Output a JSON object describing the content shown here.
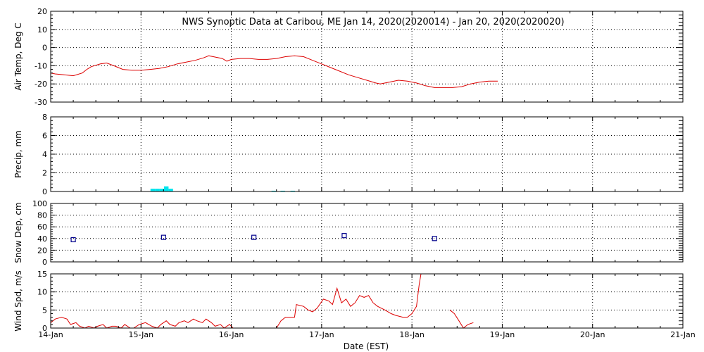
{
  "title": "NWS Synoptic Data at Caribou, ME   Jan 14, 2020(2020014) - Jan 20, 2020(2020020)",
  "colors": {
    "line": "#dd0000",
    "precip": "#00e5ee",
    "snow": "#00008b",
    "grid": "#000000"
  },
  "chart_data": [
    {
      "type": "line",
      "name": "air-temp",
      "ylabel": "Air Temp, Deg C",
      "ylim": [
        -30,
        20
      ],
      "yticks": [
        -30,
        -20,
        -10,
        0,
        10,
        20
      ],
      "ytick_labels": [
        "-30",
        "-20",
        "-10",
        "0",
        "10",
        "20"
      ],
      "series": [
        {
          "name": "Air Temp",
          "points": [
            [
              0,
              -14
            ],
            [
              0.05,
              -14.5
            ],
            [
              0.15,
              -15
            ],
            [
              0.25,
              -15.5
            ],
            [
              0.35,
              -14
            ],
            [
              0.4,
              -12
            ],
            [
              0.45,
              -10.5
            ],
            [
              0.55,
              -9
            ],
            [
              0.62,
              -8.5
            ],
            [
              0.7,
              -10
            ],
            [
              0.8,
              -12
            ],
            [
              0.9,
              -12.5
            ],
            [
              1,
              -12.5
            ],
            [
              1.1,
              -12
            ],
            [
              1.2,
              -11.5
            ],
            [
              1.3,
              -10.5
            ],
            [
              1.4,
              -9
            ],
            [
              1.5,
              -8
            ],
            [
              1.6,
              -7
            ],
            [
              1.7,
              -5.5
            ],
            [
              1.75,
              -4.5
            ],
            [
              1.8,
              -5
            ],
            [
              1.9,
              -6
            ],
            [
              1.95,
              -7.5
            ],
            [
              2,
              -6.5
            ],
            [
              2.1,
              -6
            ],
            [
              2.2,
              -6
            ],
            [
              2.3,
              -6.5
            ],
            [
              2.4,
              -6.5
            ],
            [
              2.5,
              -6
            ],
            [
              2.6,
              -5
            ],
            [
              2.7,
              -4.5
            ],
            [
              2.8,
              -5
            ],
            [
              2.9,
              -7
            ],
            [
              3.0,
              -9
            ],
            [
              3.1,
              -11
            ],
            [
              3.2,
              -13
            ],
            [
              3.3,
              -15
            ],
            [
              3.4,
              -16.5
            ],
            [
              3.5,
              -18
            ],
            [
              3.6,
              -19.5
            ],
            [
              3.65,
              -20
            ],
            [
              3.75,
              -19
            ],
            [
              3.85,
              -18
            ],
            [
              3.95,
              -18.5
            ],
            [
              4.05,
              -19.5
            ],
            [
              4.15,
              -21
            ],
            [
              4.25,
              -22
            ],
            [
              4.35,
              -22
            ],
            [
              4.45,
              -22
            ],
            [
              4.55,
              -21.5
            ],
            [
              4.65,
              -20
            ],
            [
              4.75,
              -19
            ],
            [
              4.85,
              -18.5
            ],
            [
              4.95,
              -18.5
            ]
          ]
        }
      ]
    },
    {
      "type": "bar",
      "name": "precip",
      "ylabel": "Precip, mm",
      "ylim": [
        0,
        8
      ],
      "yticks": [
        0,
        2,
        4,
        6,
        8
      ],
      "ytick_labels": [
        "0",
        "2",
        "4",
        "6",
        "8"
      ],
      "bar_width": 0.05,
      "bars": [
        [
          1.13,
          0.3
        ],
        [
          1.18,
          0.3
        ],
        [
          1.23,
          0.3
        ],
        [
          1.28,
          0.55
        ],
        [
          1.33,
          0.3
        ],
        [
          2.47,
          0.08
        ],
        [
          2.57,
          0.08
        ],
        [
          2.68,
          0.08
        ]
      ]
    },
    {
      "type": "scatter",
      "name": "snow-depth",
      "ylabel": "Snow Dep, cm",
      "ylim": [
        0,
        100
      ],
      "yticks": [
        0,
        20,
        40,
        60,
        80,
        100
      ],
      "ytick_labels": [
        "0",
        "20",
        "40",
        "60",
        "80",
        "100"
      ],
      "points": [
        [
          0.25,
          38
        ],
        [
          1.25,
          42
        ],
        [
          2.25,
          42
        ],
        [
          3.25,
          45
        ],
        [
          4.25,
          40
        ]
      ]
    },
    {
      "type": "line",
      "name": "wind-speed",
      "ylabel": "Wind Spd, m/s",
      "ylim": [
        0,
        15
      ],
      "yticks": [
        0,
        5,
        10,
        15
      ],
      "ytick_labels": [
        "0",
        "5",
        "10",
        "15"
      ],
      "segments": [
        [
          [
            0,
            1.5
          ],
          [
            0.05,
            2.5
          ],
          [
            0.12,
            3
          ],
          [
            0.18,
            2.5
          ],
          [
            0.22,
            1
          ],
          [
            0.28,
            1.5
          ],
          [
            0.32,
            0.5
          ],
          [
            0.38,
            0
          ],
          [
            0.42,
            0.5
          ],
          [
            0.48,
            0
          ],
          [
            0.52,
            0.5
          ],
          [
            0.58,
            1
          ],
          [
            0.62,
            0
          ],
          [
            0.68,
            0.5
          ],
          [
            0.72,
            0.5
          ],
          [
            0.78,
            0
          ],
          [
            0.82,
            1
          ],
          [
            0.88,
            0
          ],
          [
            0.92,
            0
          ],
          [
            0.98,
            1
          ],
          [
            1.05,
            1.5
          ],
          [
            1.12,
            0.5
          ],
          [
            1.18,
            0
          ],
          [
            1.22,
            1
          ],
          [
            1.28,
            2
          ],
          [
            1.32,
            1
          ],
          [
            1.38,
            0.5
          ],
          [
            1.42,
            1.5
          ],
          [
            1.48,
            2
          ],
          [
            1.52,
            1.5
          ],
          [
            1.58,
            2.5
          ],
          [
            1.62,
            2
          ],
          [
            1.68,
            1.5
          ],
          [
            1.72,
            2.5
          ],
          [
            1.78,
            1.5
          ],
          [
            1.82,
            0.5
          ],
          [
            1.88,
            1
          ],
          [
            1.92,
            0
          ],
          [
            1.98,
            1
          ],
          [
            2.02,
            0
          ]
        ],
        [
          [
            2.5,
            0
          ],
          [
            2.55,
            2
          ],
          [
            2.6,
            3
          ],
          [
            2.7,
            3
          ],
          [
            2.72,
            6.5
          ],
          [
            2.8,
            6
          ],
          [
            2.85,
            5
          ],
          [
            2.9,
            4.5
          ],
          [
            2.95,
            5.5
          ],
          [
            3.02,
            8
          ],
          [
            3.08,
            7.5
          ],
          [
            3.12,
            6.5
          ],
          [
            3.17,
            11
          ],
          [
            3.22,
            7
          ],
          [
            3.27,
            8
          ],
          [
            3.32,
            6
          ],
          [
            3.37,
            7
          ],
          [
            3.42,
            9
          ],
          [
            3.47,
            8.5
          ],
          [
            3.52,
            9
          ],
          [
            3.57,
            7
          ],
          [
            3.62,
            6
          ],
          [
            3.7,
            5
          ],
          [
            3.77,
            4
          ],
          [
            3.82,
            3.5
          ],
          [
            3.9,
            3
          ],
          [
            3.95,
            3
          ],
          [
            4.0,
            4
          ],
          [
            4.05,
            6
          ],
          [
            4.08,
            12
          ],
          [
            4.1,
            15
          ]
        ],
        [
          [
            4.42,
            5
          ],
          [
            4.47,
            4
          ],
          [
            4.52,
            2
          ],
          [
            4.57,
            0
          ],
          [
            4.62,
            1
          ],
          [
            4.68,
            1.5
          ]
        ]
      ]
    }
  ],
  "x_axis": {
    "label": "Date (EST)",
    "xlim": [
      0,
      7
    ],
    "ticks": [
      0,
      1,
      2,
      3,
      4,
      5,
      6,
      7
    ],
    "tick_labels": [
      "14-Jan",
      "15-Jan",
      "16-Jan",
      "17-Jan",
      "18-Jan",
      "19-Jan",
      "20-Jan",
      "21-Jan"
    ]
  }
}
